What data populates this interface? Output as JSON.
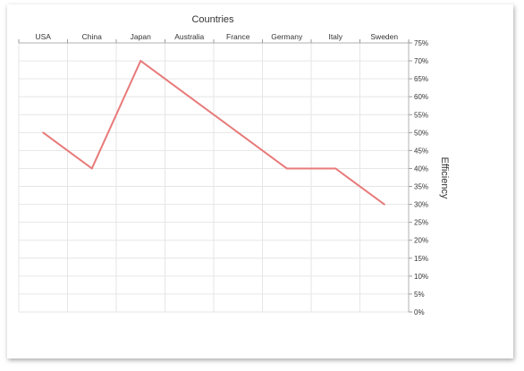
{
  "chart_data": {
    "type": "line",
    "title": "",
    "xlabel": "Countries",
    "ylabel": "Efficiency",
    "categories": [
      "USA",
      "China",
      "Japan",
      "Australia",
      "France",
      "Germany",
      "Italy",
      "Sweden"
    ],
    "series": [
      {
        "values": [
          50,
          40,
          70,
          60,
          50,
          40,
          40,
          30
        ],
        "color": "#e87a7a"
      }
    ],
    "ylim": [
      0,
      75
    ],
    "ystep": 5,
    "ytick_format": "{v}%",
    "x_axis_position": "top",
    "y_axis_position": "right",
    "grid": true
  }
}
